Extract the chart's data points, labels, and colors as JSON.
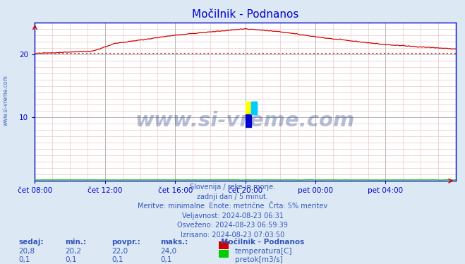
{
  "title": "Močilnik - Podnanos",
  "bg_color": "#dce9f5",
  "plot_bg_color": "#ffffff",
  "x_min": 0,
  "x_max": 288,
  "y_min": 0,
  "y_max": 25,
  "y_ticks": [
    10,
    20
  ],
  "x_tick_labels": [
    "čet 08:00",
    "čet 12:00",
    "čet 16:00",
    "čet 20:00",
    "pet 00:00",
    "pet 04:00"
  ],
  "x_tick_positions": [
    0,
    48,
    96,
    144,
    192,
    240
  ],
  "title_color": "#0000cc",
  "axis_color": "#0000cc",
  "tick_color": "#0000cc",
  "grid_color_major": "#aaaaaa",
  "grid_color_minor": "#e8b8b8",
  "temp_line_color": "#cc0000",
  "flow_line_color": "#00bb00",
  "dotted_line_color": "#cc0000",
  "dotted_line_y": 20.2,
  "watermark_text": "www.si-vreme.com",
  "watermark_color": "#0a2a7a",
  "watermark_alpha": 0.3,
  "footer_lines": [
    "Slovenija / reke in morje.",
    "zadnji dan / 5 minut.",
    "Meritve: minimalne  Enote: metrične  Črta: 5% meritev",
    "Veljavnost: 2024-08-23 06:31",
    "Osveženo: 2024-08-23 06:59:39",
    "Izrisano: 2024-08-23 07:03:50"
  ],
  "footer_color": "#3355bb",
  "stats_labels": [
    "sedaj:",
    "min.:",
    "povpr.:",
    "maks.:"
  ],
  "stats_temp": [
    "20,8",
    "20,2",
    "22,0",
    "24,0"
  ],
  "stats_flow": [
    "0,1",
    "0,1",
    "0,1",
    "0,1"
  ],
  "legend_title": "Močilnik - Podnanos",
  "legend_temp_label": "temperatura[C]",
  "legend_flow_label": "pretok[m3/s]",
  "legend_temp_color": "#cc0000",
  "legend_flow_color": "#00cc00",
  "side_text": "www.si-vreme.com",
  "side_text_color": "#3355bb"
}
